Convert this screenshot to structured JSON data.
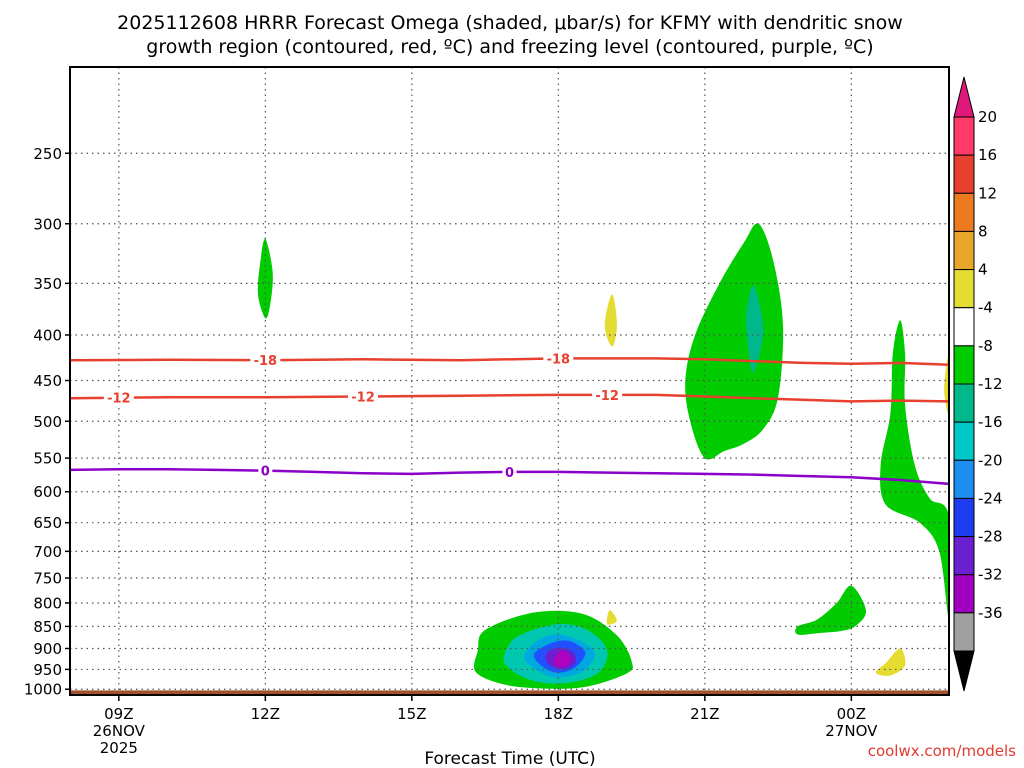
{
  "chart_data": {
    "type": "heatmap",
    "title_line1": "2025112608 HRRR Forecast Omega (shaded, μbar/s) for KFMY with dendritic snow",
    "title_line2": "growth region (contoured, red, ºC) and freezing level (contoured, purple, ºC)",
    "xlabel": "Forecast Time (UTC)",
    "ylabel": "",
    "x_ticks": [
      {
        "label": "09Z",
        "hour": 9
      },
      {
        "label": "12Z",
        "hour": 12
      },
      {
        "label": "15Z",
        "hour": 15
      },
      {
        "label": "18Z",
        "hour": 18
      },
      {
        "label": "21Z",
        "hour": 21
      },
      {
        "label": "00Z",
        "hour": 24
      }
    ],
    "x_date_labels": [
      {
        "hour": 9,
        "line1": "26NOV",
        "line2": "2025"
      },
      {
        "hour": 24,
        "line1": "27NOV",
        "line2": ""
      }
    ],
    "xlim_hours": [
      8.0,
      26.0
    ],
    "y_ticks": [
      250,
      300,
      350,
      400,
      450,
      500,
      550,
      600,
      650,
      700,
      750,
      800,
      850,
      900,
      950,
      1000
    ],
    "ylim_hpa": [
      200,
      1015
    ],
    "surface": {
      "color": "#a0522d",
      "from_hpa": 1003
    },
    "contours": [
      {
        "name": "dgz-minus18",
        "level_label": "-18",
        "color": "#e8402e",
        "points": [
          [
            8,
            427
          ],
          [
            10,
            426.5
          ],
          [
            12,
            427
          ],
          [
            14,
            426
          ],
          [
            16,
            427
          ],
          [
            18,
            425
          ],
          [
            20,
            425
          ],
          [
            21,
            426
          ],
          [
            22,
            428
          ],
          [
            23,
            430
          ],
          [
            24,
            431
          ],
          [
            25,
            430
          ],
          [
            26,
            432
          ]
        ],
        "label_hours": [
          12,
          18
        ]
      },
      {
        "name": "dgz-minus12",
        "level_label": "-12",
        "color": "#e8402e",
        "points": [
          [
            8,
            471
          ],
          [
            10,
            470
          ],
          [
            12,
            470
          ],
          [
            14,
            469
          ],
          [
            16,
            468
          ],
          [
            18,
            467
          ],
          [
            20,
            467
          ],
          [
            21,
            469
          ],
          [
            22,
            471
          ],
          [
            23,
            473
          ],
          [
            24,
            475
          ],
          [
            25,
            474
          ],
          [
            26,
            475
          ]
        ],
        "label_hours": [
          9,
          14,
          19
        ]
      },
      {
        "name": "freezing-level",
        "level_label": "0",
        "color": "#8b00c9",
        "points": [
          [
            8,
            567
          ],
          [
            9,
            566
          ],
          [
            10,
            566
          ],
          [
            11,
            567
          ],
          [
            12,
            568
          ],
          [
            13,
            570
          ],
          [
            14,
            572
          ],
          [
            15,
            573
          ],
          [
            16,
            571
          ],
          [
            17,
            570
          ],
          [
            18,
            570
          ],
          [
            19,
            571
          ],
          [
            20,
            572
          ],
          [
            21,
            573
          ],
          [
            22,
            574
          ],
          [
            23,
            576
          ],
          [
            24,
            578
          ],
          [
            25,
            582
          ],
          [
            26,
            588
          ]
        ],
        "label_hours": [
          12,
          17
        ]
      }
    ],
    "omega_regions": [
      {
        "name": "omega-12z-350",
        "color": "#00cc00",
        "points": [
          [
            12,
            312
          ],
          [
            12.15,
            340
          ],
          [
            12.1,
            370
          ],
          [
            12,
            383
          ],
          [
            11.85,
            360
          ],
          [
            11.9,
            330
          ]
        ]
      },
      {
        "name": "omega-19z-390",
        "color": "#e5dc32",
        "points": [
          [
            19.1,
            360
          ],
          [
            19.2,
            390
          ],
          [
            19.1,
            412
          ],
          [
            18.95,
            390
          ]
        ]
      },
      {
        "name": "omega-21z-wide",
        "color": "#00cc00",
        "points": [
          [
            22.1,
            300
          ],
          [
            22.4,
            330
          ],
          [
            22.6,
            390
          ],
          [
            22.5,
            470
          ],
          [
            22.2,
            510
          ],
          [
            21.8,
            530
          ],
          [
            21.4,
            540
          ],
          [
            21,
            550
          ],
          [
            20.7,
            500
          ],
          [
            20.6,
            450
          ],
          [
            20.8,
            400
          ],
          [
            21.3,
            350
          ],
          [
            21.8,
            315
          ]
        ]
      },
      {
        "name": "omega-22z-inner",
        "color": "#00b88a",
        "points": [
          [
            22.0,
            352
          ],
          [
            22.2,
            395
          ],
          [
            22.0,
            440
          ],
          [
            21.9,
            420
          ],
          [
            21.85,
            380
          ]
        ]
      },
      {
        "name": "omega-01z-column",
        "color": "#00cc00",
        "points": [
          [
            25.0,
            385
          ],
          [
            25.1,
            420
          ],
          [
            25.1,
            480
          ],
          [
            25.3,
            560
          ],
          [
            25.6,
            610
          ],
          [
            26.0,
            640
          ],
          [
            26.0,
            830
          ],
          [
            25.8,
            700
          ],
          [
            25.4,
            650
          ],
          [
            24.7,
            620
          ],
          [
            24.6,
            560
          ],
          [
            24.8,
            490
          ],
          [
            24.85,
            420
          ]
        ]
      },
      {
        "name": "omega-0130z-yellow",
        "color": "#e5dc32",
        "points": [
          [
            26,
            420
          ],
          [
            26,
            490
          ],
          [
            25.9,
            460
          ]
        ]
      },
      {
        "name": "omega-2330z-low",
        "color": "#00cc00",
        "points": [
          [
            24.0,
            765
          ],
          [
            24.3,
            815
          ],
          [
            24.1,
            848
          ],
          [
            23.8,
            860
          ],
          [
            23.3,
            865
          ],
          [
            22.9,
            868
          ],
          [
            22.9,
            850
          ],
          [
            23.3,
            835
          ],
          [
            23.7,
            800
          ]
        ]
      },
      {
        "name": "omega-19z-870",
        "color": "#e5dc32",
        "points": [
          [
            19.05,
            815
          ],
          [
            19.2,
            838
          ],
          [
            19.0,
            845
          ]
        ]
      },
      {
        "name": "omega-01z-955",
        "color": "#e5dc32",
        "points": [
          [
            25.0,
            900
          ],
          [
            25.1,
            940
          ],
          [
            24.8,
            965
          ],
          [
            24.5,
            958
          ],
          [
            24.7,
            935
          ]
        ]
      },
      {
        "name": "omega-18z-green",
        "color": "#00cc00",
        "points": [
          [
            16.5,
            858
          ],
          [
            17.5,
            820
          ],
          [
            18.5,
            823
          ],
          [
            19.2,
            870
          ],
          [
            19.5,
            930
          ],
          [
            19.4,
            960
          ],
          [
            18.5,
            995
          ],
          [
            17.5,
            997
          ],
          [
            16.8,
            985
          ],
          [
            16.3,
            955
          ],
          [
            16.35,
            905
          ]
        ]
      },
      {
        "name": "omega-18z-teal",
        "color": "#00c8b0",
        "points": [
          [
            17.3,
            865
          ],
          [
            18.0,
            845
          ],
          [
            18.6,
            858
          ],
          [
            19.0,
            905
          ],
          [
            18.8,
            960
          ],
          [
            18.1,
            985
          ],
          [
            17.4,
            975
          ],
          [
            16.9,
            935
          ],
          [
            17.0,
            890
          ]
        ]
      },
      {
        "name": "omega-18z-skyblue",
        "color": "#00a8e0",
        "points": [
          [
            17.6,
            880
          ],
          [
            18.0,
            868
          ],
          [
            18.5,
            885
          ],
          [
            18.75,
            915
          ],
          [
            18.5,
            955
          ],
          [
            18.0,
            970
          ],
          [
            17.6,
            955
          ],
          [
            17.3,
            920
          ]
        ]
      },
      {
        "name": "omega-18z-blue",
        "color": "#2050ff",
        "points": [
          [
            17.8,
            890
          ],
          [
            18.2,
            882
          ],
          [
            18.55,
            908
          ],
          [
            18.35,
            945
          ],
          [
            18.0,
            958
          ],
          [
            17.7,
            945
          ],
          [
            17.5,
            915
          ]
        ]
      },
      {
        "name": "omega-18z-indigo",
        "color": "#6a20d0",
        "points": [
          [
            18.0,
            898
          ],
          [
            18.3,
            908
          ],
          [
            18.35,
            935
          ],
          [
            18.1,
            950
          ],
          [
            17.8,
            938
          ],
          [
            17.75,
            912
          ]
        ]
      },
      {
        "name": "omega-18z-core",
        "color": "#b000c0",
        "points": [
          [
            18.05,
            905
          ],
          [
            18.25,
            918
          ],
          [
            18.2,
            940
          ],
          [
            18.0,
            945
          ],
          [
            17.9,
            928
          ]
        ]
      }
    ],
    "colorbar": {
      "ticks": [
        "20",
        "16",
        "12",
        "8",
        "4",
        "-4",
        "-8",
        "-12",
        "-16",
        "-20",
        "-24",
        "-28",
        "-32",
        "-36"
      ],
      "colors": [
        "#ff3a6a",
        "#e8402e",
        "#ec7a1e",
        "#e8a62a",
        "#e5dc32",
        "#ffffff",
        "#00cc00",
        "#00b88a",
        "#00c8c8",
        "#1e8ff0",
        "#1e3cf0",
        "#6a20d0",
        "#a000c0",
        "#a0a0a0"
      ],
      "top_triangle_color": "#e0187a",
      "bottom_triangle_color": "#000000"
    },
    "credit": "coolwx.com/models"
  }
}
